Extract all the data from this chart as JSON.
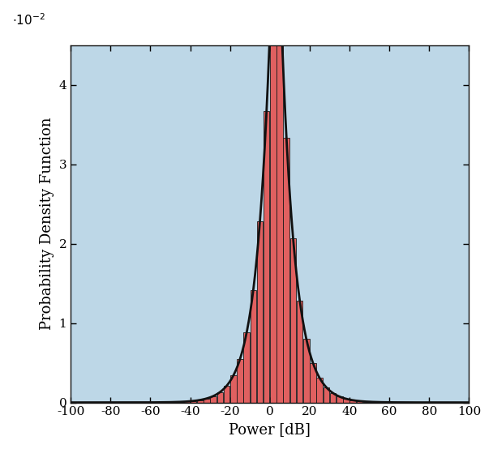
{
  "title": "",
  "xlabel": "Power [dB]",
  "ylabel": "Probability Density Function",
  "xlim": [
    -100,
    100
  ],
  "ylim": [
    0,
    0.045
  ],
  "xticks": [
    -100,
    -80,
    -60,
    -40,
    -20,
    0,
    20,
    40,
    60,
    80,
    100
  ],
  "yticks": [
    0,
    0.01,
    0.02,
    0.03,
    0.04
  ],
  "ytick_labels": [
    "0",
    "1",
    "2",
    "3",
    "4"
  ],
  "bar_color": "#E06060",
  "bar_edge_color": "#1a1a1a",
  "curve_color": "#111111",
  "background_color": "#BDD7E7",
  "dist_mu": 3.0,
  "dist_b": 7.0,
  "n_bins": 60,
  "figsize": [
    6.08,
    5.54
  ],
  "dpi": 100
}
